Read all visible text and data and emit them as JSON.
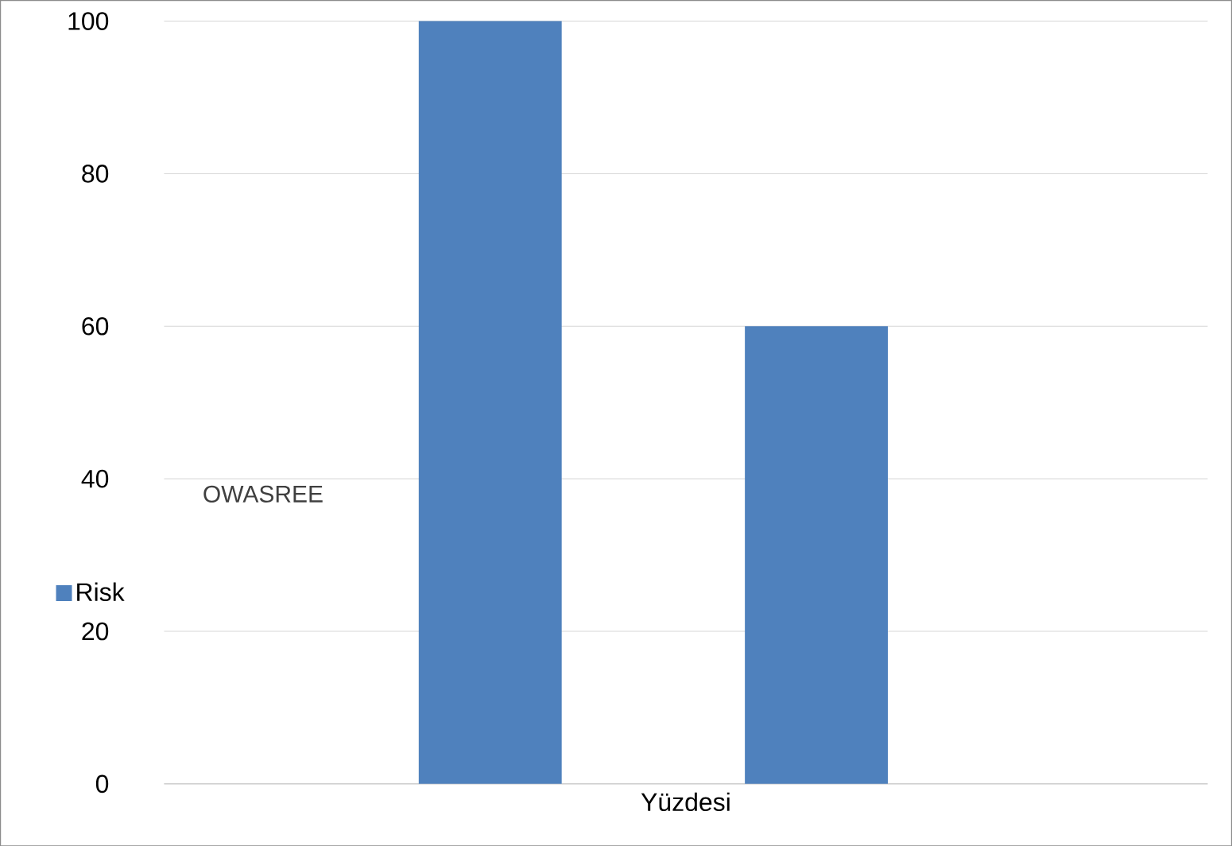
{
  "chart_data": {
    "type": "bar",
    "categories": [
      null,
      null
    ],
    "series": [
      {
        "name": "Risk",
        "color": "#4f81bd",
        "values": [
          100,
          60
        ]
      }
    ],
    "xlabel": "Yüzdesi",
    "ylim": [
      0,
      100
    ],
    "yticks": [
      0,
      20,
      40,
      60,
      80,
      100
    ],
    "grid": "y",
    "legend": "left",
    "annotations": [
      "OWASREE"
    ]
  }
}
